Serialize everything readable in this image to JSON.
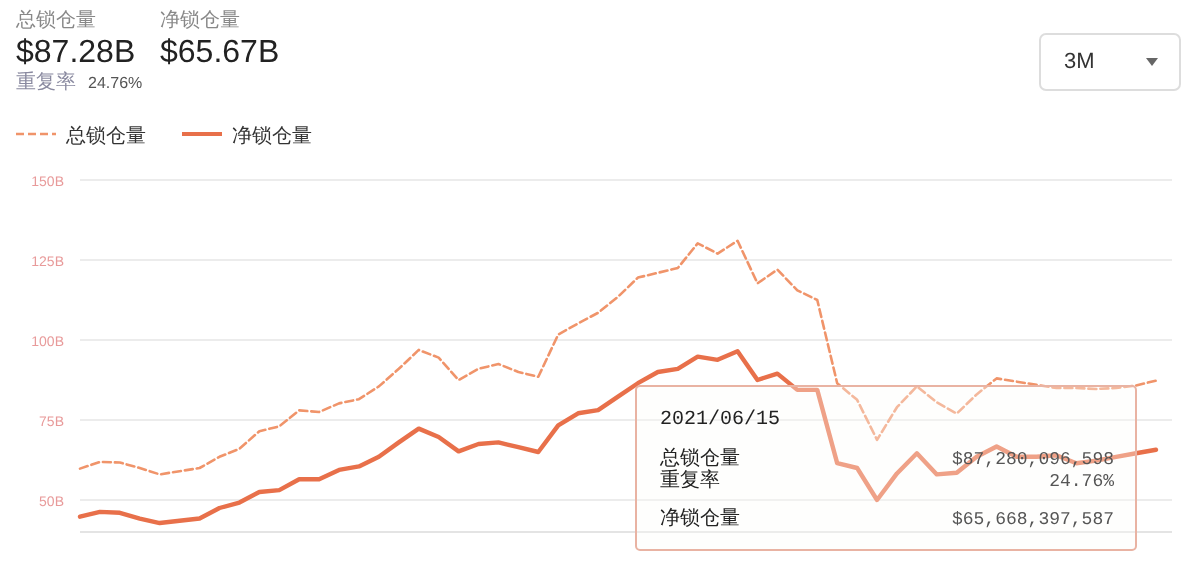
{
  "chart_data": {
    "type": "line",
    "categories": [
      null,
      null,
      null,
      null,
      null,
      null,
      null,
      null,
      null,
      null,
      null,
      null,
      null,
      null,
      null,
      null,
      null,
      null,
      null,
      null,
      null,
      null,
      null,
      null,
      null,
      null,
      null,
      null,
      null,
      null,
      null,
      null,
      null,
      null,
      null,
      null,
      null,
      null,
      null,
      null,
      null,
      null,
      null,
      null,
      null,
      null,
      null,
      null,
      null,
      null,
      null,
      null,
      null,
      null,
      null
    ],
    "series": [
      {
        "name": "总锁仓量",
        "color": "#f0946a",
        "line_style": "dashed",
        "values": [
          59.8,
          61.9,
          61.7,
          60,
          58,
          59,
          60,
          63.5,
          66,
          71.5,
          73,
          78,
          77.5,
          80.2,
          81.5,
          85.5,
          91,
          96.9,
          94.5,
          87.5,
          91,
          92.5,
          90,
          88.5,
          101.7,
          105.2,
          108.5,
          113.5,
          119.5,
          121,
          122.5,
          130.2,
          127,
          131,
          117.7,
          122,
          115.5,
          112.5,
          86.5,
          81.3,
          68.8,
          79,
          85.5,
          80.5,
          77,
          83,
          88,
          87,
          86,
          85,
          85,
          84.7,
          85,
          85.8,
          87.3
        ]
      },
      {
        "name": "净锁仓量",
        "color": "#e8704a",
        "line_style": "solid",
        "values": [
          44.8,
          46.3,
          46,
          44.2,
          42.8,
          43.5,
          44.2,
          47.5,
          49.2,
          52.5,
          53.1,
          56.5,
          56.5,
          59.4,
          60.5,
          63.5,
          68,
          72.3,
          69.7,
          65.2,
          67.5,
          68,
          66.5,
          65,
          73.3,
          77.1,
          78.1,
          82.3,
          86.5,
          90,
          91,
          94.8,
          93.8,
          96.5,
          87.5,
          89.5,
          84.4,
          84.4,
          61.5,
          60,
          50,
          58.3,
          64.6,
          58,
          58.5,
          63.5,
          66.7,
          63.5,
          63.5,
          64,
          61.5,
          62.3,
          63.5,
          64.6,
          65.7
        ]
      }
    ],
    "ylim": [
      40,
      150
    ],
    "yticks": [
      {
        "value": 50,
        "label": "50B"
      },
      {
        "value": 75,
        "label": "75B"
      },
      {
        "value": 100,
        "label": "100B"
      },
      {
        "value": 125,
        "label": "125B"
      },
      {
        "value": 150,
        "label": "150B"
      }
    ],
    "grid": "y",
    "legend": "top left",
    "tick_labels": "y",
    "annotations": [
      "总锁仓量",
      "$87.28B",
      "净锁仓量",
      "$65.67B",
      "重复率",
      "24.76%",
      "3M",
      "2021/06/15",
      "总锁仓量",
      "$87,280,096,598",
      "重复率",
      "24.76%",
      "净锁仓量",
      "$65,668,397,587"
    ]
  }
}
